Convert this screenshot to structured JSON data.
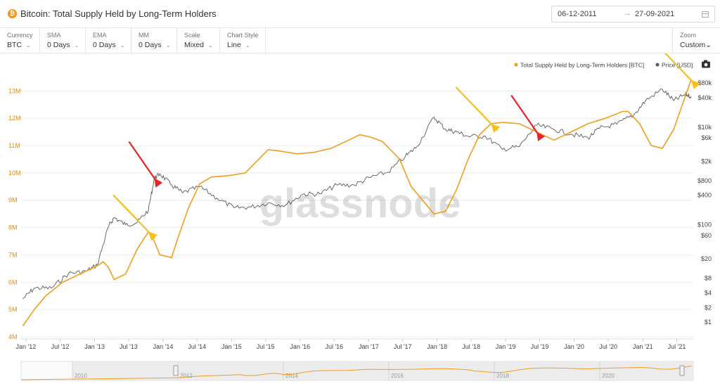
{
  "header": {
    "coin_symbol": "₿",
    "title": "Bitcoin: Total Supply Held by Long-Term Holders",
    "date_from": "06-12-2011",
    "date_to": "27-09-2021"
  },
  "controls": [
    {
      "label": "Currency",
      "value": "BTC"
    },
    {
      "label": "SMA",
      "value": "0 Days"
    },
    {
      "label": "EMA",
      "value": "0 Days"
    },
    {
      "label": "MM",
      "value": "0 Days"
    },
    {
      "label": "Scale",
      "value": "Mixed"
    },
    {
      "label": "Chart Style",
      "value": "Line"
    }
  ],
  "zoom": {
    "label": "Zoom",
    "value": "Custom"
  },
  "watermark": "glassnode",
  "colors": {
    "lth": "#f39c1f",
    "price": "#5a5a5a",
    "arrow_red": "#e8232a",
    "arrow_yellow": "#f5c018"
  },
  "chart_data": {
    "type": "line",
    "legend_position": "top-right",
    "series": [
      {
        "name": "Total Supply Held by Long-Term Holders [BTC]",
        "axis": "left",
        "points": [
          [
            "2011-12",
            4.4
          ],
          [
            "2012-02",
            5.0
          ],
          [
            "2012-04",
            5.5
          ],
          [
            "2012-07",
            6.0
          ],
          [
            "2012-10",
            6.3
          ],
          [
            "2013-01",
            6.6
          ],
          [
            "2013-02",
            6.75
          ],
          [
            "2013-03",
            6.55
          ],
          [
            "2013-04",
            6.1
          ],
          [
            "2013-06",
            6.3
          ],
          [
            "2013-08",
            7.2
          ],
          [
            "2013-10",
            7.85
          ],
          [
            "2013-11",
            7.5
          ],
          [
            "2013-12",
            7.0
          ],
          [
            "2014-02",
            6.9
          ],
          [
            "2014-03",
            7.5
          ],
          [
            "2014-05",
            8.7
          ],
          [
            "2014-07",
            9.6
          ],
          [
            "2014-09",
            9.85
          ],
          [
            "2014-12",
            9.9
          ],
          [
            "2015-03",
            10.0
          ],
          [
            "2015-07",
            10.85
          ],
          [
            "2015-09",
            10.8
          ],
          [
            "2015-12",
            10.7
          ],
          [
            "2016-03",
            10.75
          ],
          [
            "2016-06",
            10.9
          ],
          [
            "2016-09",
            11.2
          ],
          [
            "2016-11",
            11.4
          ],
          [
            "2017-01",
            11.3
          ],
          [
            "2017-03",
            11.15
          ],
          [
            "2017-06",
            10.5
          ],
          [
            "2017-08",
            9.5
          ],
          [
            "2017-10",
            9.0
          ],
          [
            "2017-12",
            8.5
          ],
          [
            "2018-02",
            8.6
          ],
          [
            "2018-04",
            9.4
          ],
          [
            "2018-06",
            10.5
          ],
          [
            "2018-08",
            11.4
          ],
          [
            "2018-10",
            11.8
          ],
          [
            "2018-12",
            11.85
          ],
          [
            "2019-03",
            11.8
          ],
          [
            "2019-06",
            11.5
          ],
          [
            "2019-09",
            11.2
          ],
          [
            "2019-12",
            11.5
          ],
          [
            "2020-03",
            11.8
          ],
          [
            "2020-06",
            12.0
          ],
          [
            "2020-09",
            12.25
          ],
          [
            "2020-10",
            12.25
          ],
          [
            "2020-12",
            11.8
          ],
          [
            "2021-02",
            11.0
          ],
          [
            "2021-04",
            10.9
          ],
          [
            "2021-06",
            11.6
          ],
          [
            "2021-08",
            12.8
          ],
          [
            "2021-09",
            13.4
          ]
        ]
      },
      {
        "name": "Price [USD]",
        "axis": "right",
        "points": [
          [
            "2011-12",
            3
          ],
          [
            "2012-02",
            5
          ],
          [
            "2012-05",
            5
          ],
          [
            "2012-08",
            10
          ],
          [
            "2012-11",
            11
          ],
          [
            "2013-01",
            15
          ],
          [
            "2013-03",
            90
          ],
          [
            "2013-04",
            140
          ],
          [
            "2013-06",
            100
          ],
          [
            "2013-08",
            110
          ],
          [
            "2013-10",
            200
          ],
          [
            "2013-11",
            900
          ],
          [
            "2013-12",
            1100
          ],
          [
            "2014-02",
            650
          ],
          [
            "2014-04",
            450
          ],
          [
            "2014-07",
            600
          ],
          [
            "2014-10",
            350
          ],
          [
            "2015-01",
            220
          ],
          [
            "2015-04",
            230
          ],
          [
            "2015-07",
            280
          ],
          [
            "2015-10",
            250
          ],
          [
            "2016-01",
            420
          ],
          [
            "2016-04",
            430
          ],
          [
            "2016-07",
            650
          ],
          [
            "2016-10",
            650
          ],
          [
            "2017-01",
            950
          ],
          [
            "2017-04",
            1200
          ],
          [
            "2017-07",
            2500
          ],
          [
            "2017-09",
            4000
          ],
          [
            "2017-12",
            16000
          ],
          [
            "2018-02",
            9000
          ],
          [
            "2018-04",
            8000
          ],
          [
            "2018-06",
            6500
          ],
          [
            "2018-09",
            6500
          ],
          [
            "2018-12",
            3500
          ],
          [
            "2019-03",
            4000
          ],
          [
            "2019-06",
            11000
          ],
          [
            "2019-09",
            9000
          ],
          [
            "2019-12",
            7200
          ],
          [
            "2020-03",
            6000
          ],
          [
            "2020-05",
            9500
          ],
          [
            "2020-08",
            11500
          ],
          [
            "2020-11",
            18000
          ],
          [
            "2021-01",
            35000
          ],
          [
            "2021-04",
            60000
          ],
          [
            "2021-06",
            35000
          ],
          [
            "2021-08",
            47000
          ],
          [
            "2021-09",
            43000
          ]
        ]
      }
    ],
    "y_left": {
      "ticks": [
        "4M",
        "5M",
        "6M",
        "7M",
        "8M",
        "9M",
        "10M",
        "11M",
        "12M",
        "13M"
      ],
      "range": [
        4.0,
        13.6
      ]
    },
    "y_right": {
      "ticks": [
        "$1",
        "$2",
        "$4",
        "$8",
        "$20",
        "$60",
        "$100",
        "$400",
        "$800",
        "$2k",
        "$6k",
        "$10k",
        "$40k",
        "$80k"
      ],
      "tick_values": [
        1,
        2,
        4,
        8,
        20,
        60,
        100,
        400,
        800,
        2000,
        6000,
        10000,
        40000,
        80000
      ],
      "scale": "log"
    },
    "x_ticks": [
      "Jan '12",
      "Jul '12",
      "Jan '13",
      "Jul '13",
      "Jan '14",
      "Jul '14",
      "Jan '15",
      "Jul '15",
      "Jan '16",
      "Jul '16",
      "Jan '17",
      "Jul '17",
      "Jan '18",
      "Jul '18",
      "Jan '19",
      "Jul '19",
      "Jan '20",
      "Jul '20",
      "Jan '21",
      "Jul '21"
    ],
    "x_range": [
      "2011-12-06",
      "2021-09-27"
    ],
    "navigator_years": [
      "2010",
      "2012",
      "2014",
      "2016",
      "2018",
      "2020"
    ],
    "annotation_arrows": [
      {
        "color": "yellow",
        "target": [
          "2013-10",
          7.85
        ]
      },
      {
        "color": "red",
        "target": [
          "2013-11",
          9.5
        ]
      },
      {
        "color": "yellow",
        "target": [
          "2018-10",
          11.8
        ]
      },
      {
        "color": "red",
        "target": [
          "2019-06",
          11.0
        ]
      },
      {
        "color": "yellow",
        "target": [
          "2021-09",
          13.4
        ]
      }
    ]
  }
}
